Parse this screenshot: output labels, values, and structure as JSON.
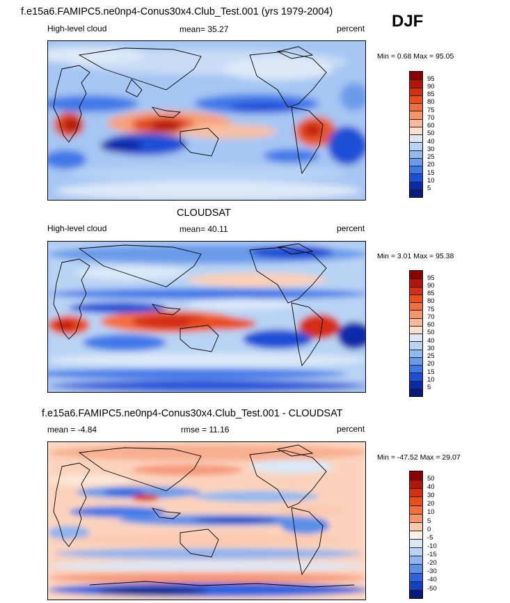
{
  "season": "DJF",
  "panels": [
    {
      "title": "f.e15a6.FAMIPC5.ne0np4-Conus30x4.Club_Test.001 (yrs 1979-2004)",
      "left_label": "High-level cloud",
      "center_label": "mean=  35.27",
      "right_label": "percent",
      "minmax": "Min =   0.68 Max =  95.05",
      "colorbar": {
        "labels": [
          "95",
          "90",
          "85",
          "80",
          "75",
          "70",
          "60",
          "50",
          "40",
          "30",
          "25",
          "20",
          "15",
          "10",
          "5"
        ],
        "colors": [
          "#8b0000",
          "#b3150a",
          "#d52e12",
          "#ea4d1e",
          "#f46e3d",
          "#f8946a",
          "#fbba9a",
          "#fde0cb",
          "#dce8f8",
          "#b8d3f4",
          "#93b9ee",
          "#6a9bea",
          "#3f78e8",
          "#1b4fd6",
          "#0a2ba8",
          "#071a7c"
        ]
      }
    },
    {
      "title": "CLOUDSAT",
      "left_label": "High-level cloud",
      "center_label": "mean=  40.11",
      "right_label": "percent",
      "minmax": "Min =   3.01 Max =  95.38",
      "colorbar": {
        "labels": [
          "95",
          "90",
          "85",
          "80",
          "75",
          "70",
          "60",
          "50",
          "40",
          "30",
          "25",
          "20",
          "15",
          "10",
          "5"
        ],
        "colors": [
          "#8b0000",
          "#b3150a",
          "#d52e12",
          "#ea4d1e",
          "#f46e3d",
          "#f8946a",
          "#fbba9a",
          "#fde0cb",
          "#dce8f8",
          "#b8d3f4",
          "#93b9ee",
          "#6a9bea",
          "#3f78e8",
          "#1b4fd6",
          "#0a2ba8",
          "#071a7c"
        ]
      }
    },
    {
      "title": "f.e15a6.FAMIPC5.ne0np4-Conus30x4.Club_Test.001 - CLOUDSAT",
      "left_label": "mean =  -4.84",
      "center_label": "rmse =  11.16",
      "right_label": "percent",
      "minmax": "Min = -47.52 Max =  29.07",
      "colorbar": {
        "labels": [
          "50",
          "40",
          "30",
          "20",
          "10",
          "5",
          "0",
          "-5",
          "-10",
          "-15",
          "-20",
          "-30",
          "-40",
          "-50"
        ],
        "colors": [
          "#8b0000",
          "#b3150a",
          "#d52e12",
          "#ea4d1e",
          "#f46e3d",
          "#f8946a",
          "#fbc9b0",
          "#fdf0e6",
          "#dce8f8",
          "#b8d3f4",
          "#8fb4ee",
          "#5c90e8",
          "#2e63e0",
          "#1540c0",
          "#071a7c"
        ]
      }
    }
  ]
}
